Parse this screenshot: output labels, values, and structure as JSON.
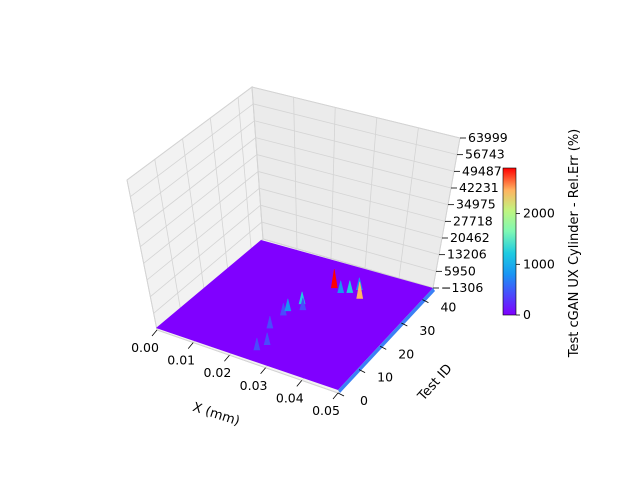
{
  "chart_data": {
    "type": "surface3d",
    "xlabel": "X (mm)",
    "ylabel": "Test ID",
    "zlabel": "",
    "x_ticks": [
      "0.00",
      "0.01",
      "0.02",
      "0.03",
      "0.04",
      "0.05"
    ],
    "y_ticks": [
      "0",
      "10",
      "20",
      "30",
      "40"
    ],
    "z_ticks": [
      "−1306",
      "5950",
      "13206",
      "20462",
      "27718",
      "34975",
      "42231",
      "49487",
      "56743",
      "63999"
    ],
    "xlim": [
      0,
      0.05
    ],
    "ylim": [
      0,
      45
    ],
    "zlim": [
      -1306,
      63999
    ],
    "surface_base_value": 0,
    "spikes": [
      {
        "x": 0.0245,
        "test_id": 5,
        "value": 300
      },
      {
        "x": 0.0255,
        "test_id": 8,
        "value": 600
      },
      {
        "x": 0.0225,
        "test_id": 14,
        "value": 400
      },
      {
        "x": 0.0225,
        "test_id": 20,
        "value": 350
      },
      {
        "x": 0.0225,
        "test_id": 22,
        "value": 650
      },
      {
        "x": 0.024,
        "test_id": 26,
        "value": 1200
      },
      {
        "x": 0.0255,
        "test_id": 24,
        "value": 300
      },
      {
        "x": 0.0275,
        "test_id": 35,
        "value": 2900
      },
      {
        "x": 0.03,
        "test_id": 34,
        "value": 700
      },
      {
        "x": 0.032,
        "test_id": 35,
        "value": 1200
      },
      {
        "x": 0.0335,
        "test_id": 37,
        "value": 900
      },
      {
        "x": 0.0355,
        "test_id": 34,
        "value": 2600
      }
    ],
    "colorbar": {
      "label": "Test cGAN UX Cylinder - Rel.Err (%)",
      "ticks": [
        "0",
        "1000",
        "2000"
      ],
      "range": [
        0,
        2900
      ],
      "colormap": "rainbow"
    },
    "grid": true
  }
}
